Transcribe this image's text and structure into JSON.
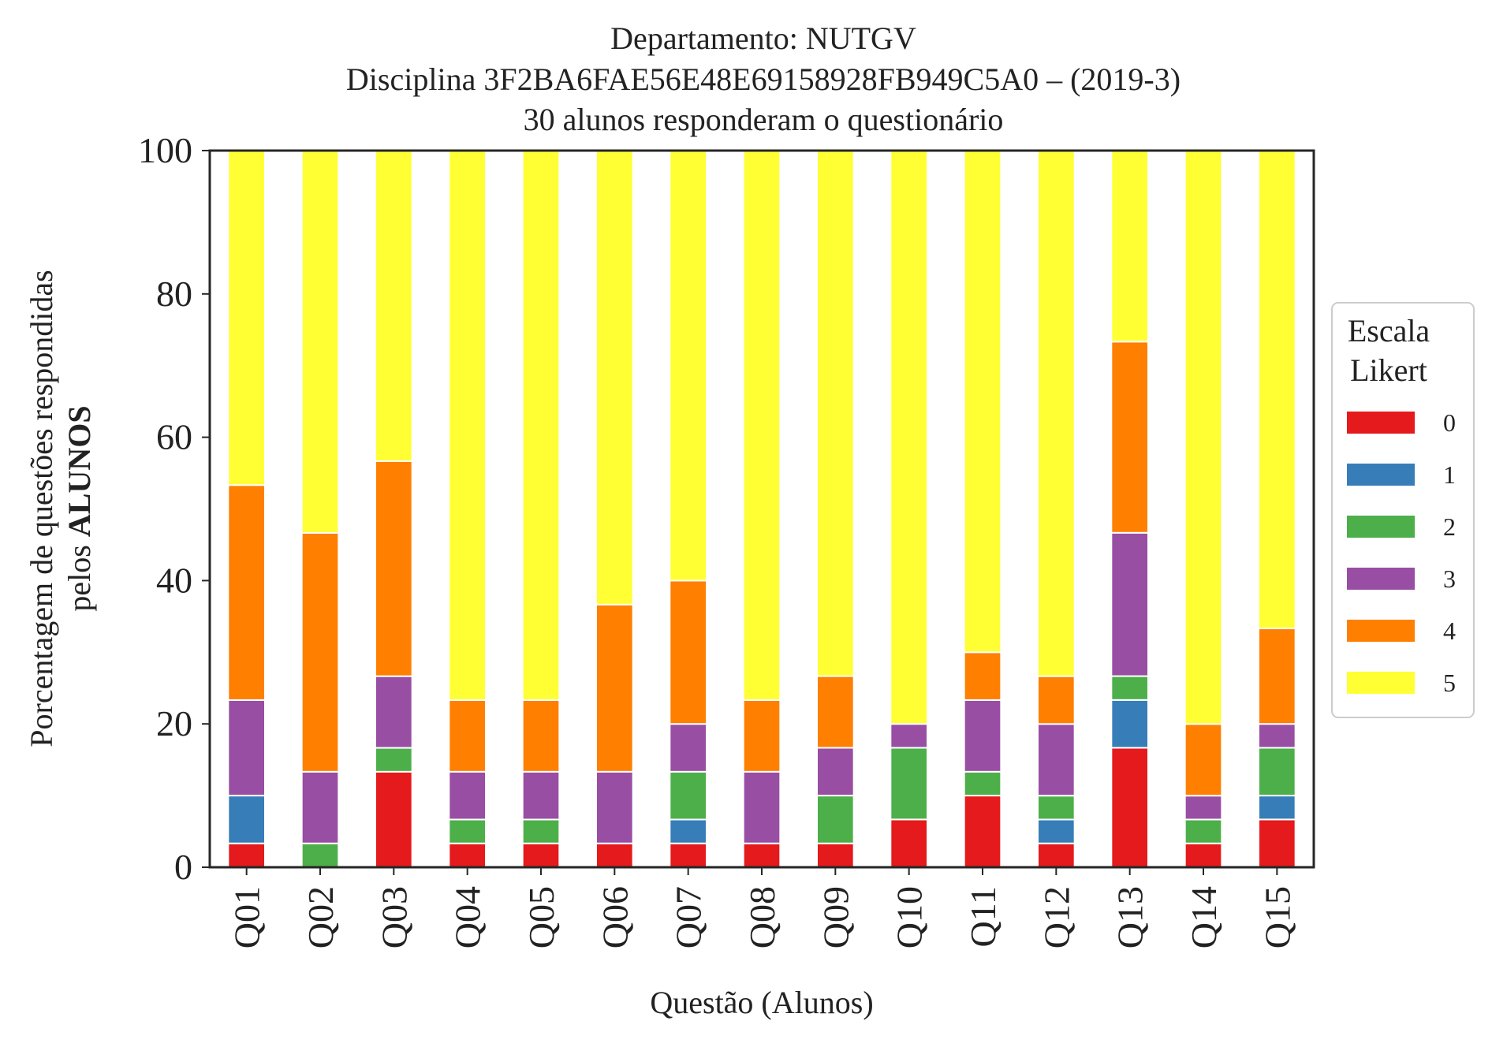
{
  "chart_data": {
    "type": "bar",
    "stacked": true,
    "title_lines": [
      "Departamento: NUTGV",
      "Disciplina 3F2BA6FAE56E48E69158928FB949C5A0 – (2019-3)",
      "30 alunos responderam o questionário"
    ],
    "xlabel": "Questão (Alunos)",
    "ylabel_line1": "Porcentagem de questões respondidas",
    "ylabel_line2_prefix": "pelos ",
    "ylabel_line2_bold": "ALUNOS",
    "ylim": [
      0,
      100
    ],
    "yticks": [
      0,
      20,
      40,
      60,
      80,
      100
    ],
    "grid": false,
    "legend_position": "right",
    "legend_title_lines": [
      "Escala",
      "Likert"
    ],
    "categories": [
      "Q01",
      "Q02",
      "Q03",
      "Q04",
      "Q05",
      "Q06",
      "Q07",
      "Q08",
      "Q09",
      "Q10",
      "Q11",
      "Q12",
      "Q13",
      "Q14",
      "Q15"
    ],
    "series": [
      {
        "name": "0",
        "color": "#e41a1c",
        "values": [
          3.33,
          0,
          13.33,
          3.33,
          3.33,
          3.33,
          3.33,
          3.33,
          3.33,
          6.67,
          10.0,
          3.33,
          16.67,
          3.33,
          6.67
        ]
      },
      {
        "name": "1",
        "color": "#377eb8",
        "values": [
          6.67,
          0,
          0,
          0,
          0,
          0,
          3.33,
          0,
          0,
          0,
          0,
          3.33,
          6.67,
          0,
          3.33
        ]
      },
      {
        "name": "2",
        "color": "#4daf4a",
        "values": [
          0,
          3.33,
          3.33,
          3.33,
          3.33,
          0,
          6.67,
          0,
          6.67,
          10.0,
          3.33,
          3.33,
          3.33,
          3.33,
          6.67
        ]
      },
      {
        "name": "3",
        "color": "#984ea3",
        "values": [
          13.33,
          10.0,
          10.0,
          6.67,
          6.67,
          10.0,
          6.67,
          10.0,
          6.67,
          3.33,
          10.0,
          10.0,
          20.0,
          3.33,
          3.33
        ]
      },
      {
        "name": "4",
        "color": "#ff7f00",
        "values": [
          30.0,
          33.33,
          30.0,
          10.0,
          10.0,
          23.33,
          20.0,
          10.0,
          10.0,
          0,
          6.67,
          6.67,
          26.67,
          10.0,
          13.33
        ]
      },
      {
        "name": "5",
        "color": "#ffff33",
        "values": [
          46.67,
          53.33,
          43.33,
          76.67,
          76.67,
          63.33,
          60.0,
          76.67,
          73.33,
          80.0,
          70.0,
          73.33,
          26.67,
          80.0,
          66.67
        ]
      }
    ]
  }
}
